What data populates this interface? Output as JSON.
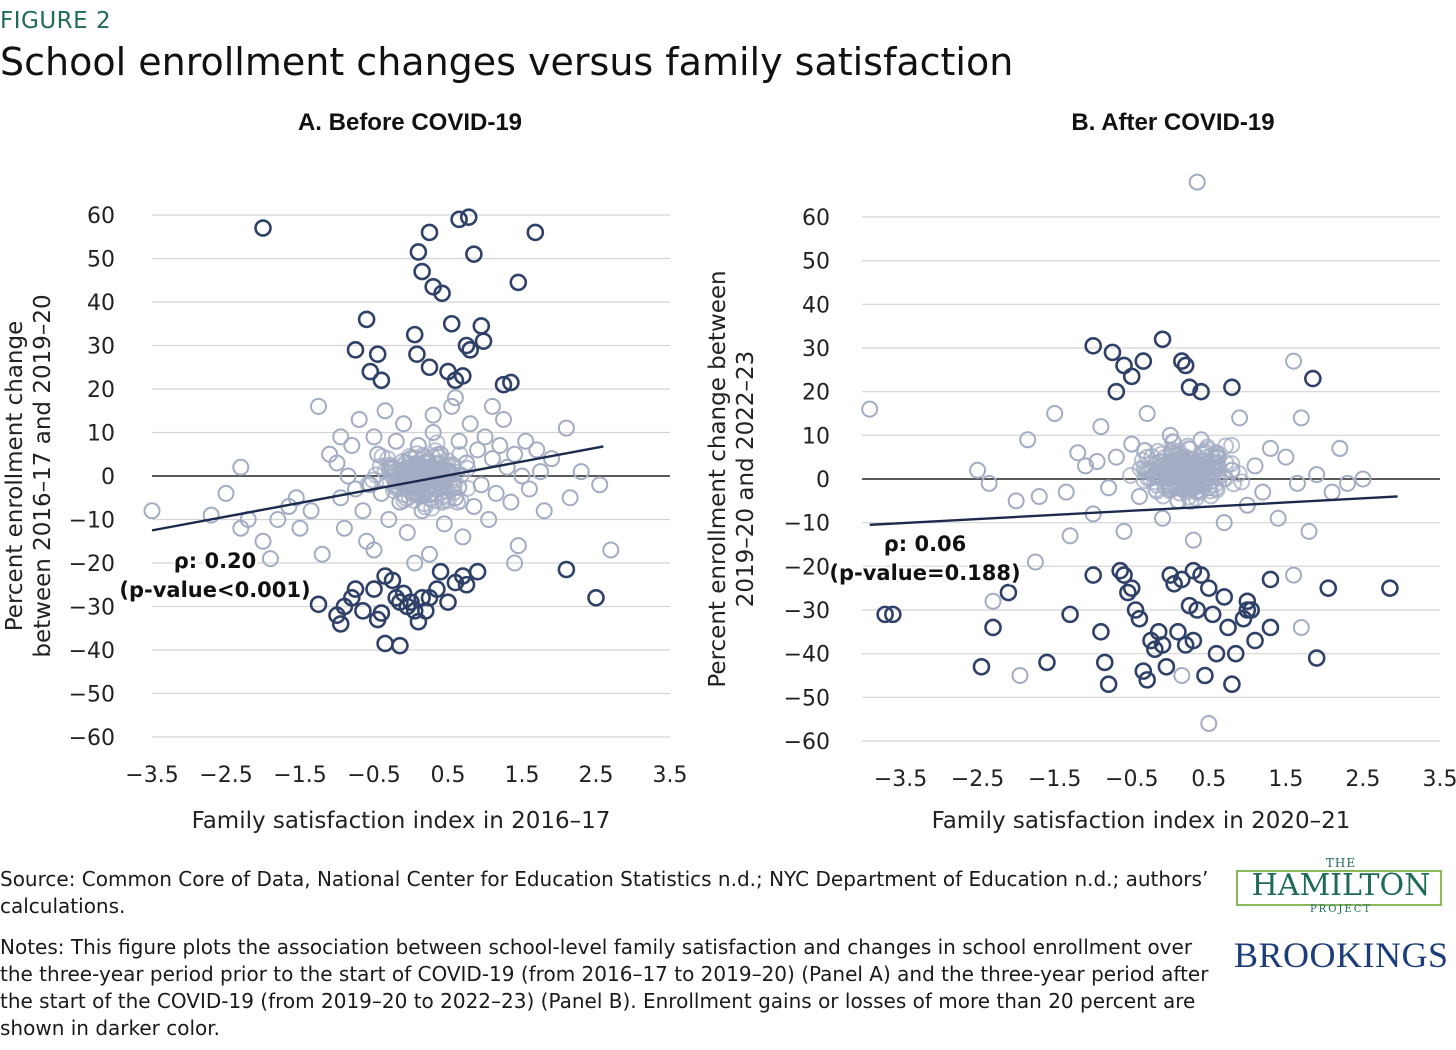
{
  "figure_label": "FIGURE 2",
  "title": "School enrollment changes versus family satisfaction",
  "source": "Source: Common Core of Data, National Center for Education Statistics n.d.; NYC Department of Education n.d.; authors’ calculations.",
  "notes": "Notes: This figure plots the association between school-level family satisfaction and changes in school enrollment over the three-year period prior to the start of COVID-19 (from 2016–17 to 2019–20) (Panel A) and the three-year period after the start of the COVID-19 (from 2019–20 to 2022–23) (Panel B). Enrollment gains or losses of more than 20 percent are shown in darker color.",
  "logos": {
    "hamilton_the": "THE",
    "hamilton_name": "HAMILTON",
    "hamilton_project": "PROJECT",
    "brookings": "BROOKINGS"
  },
  "colors": {
    "dark_marker": "#2f4168",
    "light_marker": "#a3acc3",
    "trend_line": "#1c2a4d",
    "zero_line": "#222222",
    "grid": "#d4d4d4",
    "accent": "#1f6b5a"
  },
  "chart_data": [
    {
      "type": "scatter",
      "title": "A. Before COVID-19",
      "xlabel": "Family satisfaction index in 2016–17",
      "ylabel": [
        "Percent enrollment change",
        "between 2016–17 and 2019–20"
      ],
      "xlim": [
        -3.5,
        3.5
      ],
      "ylim": [
        -60,
        60
      ],
      "xticks": [
        "-3.5",
        "-2.5",
        "-1.5",
        "-0.5",
        "0.5",
        "1.5",
        "2.5",
        "3.5"
      ],
      "yticks": [
        "60",
        "50",
        "40",
        "30",
        "20",
        "10",
        "0",
        "-10",
        "-20",
        "-30",
        "-40",
        "-50",
        "-60"
      ],
      "grid": true,
      "annotation": [
        "ρ: 0.20",
        "(p-value<0.001)"
      ],
      "trendline": {
        "x": [
          -3.5,
          2.6
        ],
        "y": [
          -12.5,
          6.8
        ]
      },
      "dark_points": [
        [
          -2.0,
          57
        ],
        [
          0.25,
          56
        ],
        [
          0.1,
          51.5
        ],
        [
          0.78,
          59.5
        ],
        [
          0.65,
          59
        ],
        [
          0.85,
          51
        ],
        [
          0.15,
          47
        ],
        [
          0.3,
          43.5
        ],
        [
          0.42,
          42
        ],
        [
          1.68,
          56
        ],
        [
          1.45,
          44.5
        ],
        [
          -0.6,
          36
        ],
        [
          0.55,
          35
        ],
        [
          0.95,
          34.5
        ],
        [
          -0.75,
          29
        ],
        [
          -0.45,
          28
        ],
        [
          0.05,
          32.5
        ],
        [
          0.75,
          30
        ],
        [
          0.8,
          29
        ],
        [
          0.98,
          31
        ],
        [
          0.08,
          28
        ],
        [
          -0.55,
          24
        ],
        [
          -0.4,
          22
        ],
        [
          0.25,
          25
        ],
        [
          0.5,
          24
        ],
        [
          0.6,
          22
        ],
        [
          0.7,
          23
        ],
        [
          1.25,
          21
        ],
        [
          1.35,
          21.5
        ],
        [
          2.5,
          -28
        ],
        [
          2.1,
          -21.5
        ],
        [
          -1.25,
          -29.5
        ],
        [
          -1.0,
          -32
        ],
        [
          -0.95,
          -34
        ],
        [
          -0.9,
          -30
        ],
        [
          -0.8,
          -28
        ],
        [
          -0.75,
          -26
        ],
        [
          -0.65,
          -31
        ],
        [
          -0.45,
          -33
        ],
        [
          -0.4,
          -31.5
        ],
        [
          -0.35,
          -23
        ],
        [
          -0.2,
          -28
        ],
        [
          -0.15,
          -29
        ],
        [
          -0.1,
          -27
        ],
        [
          -0.05,
          -30
        ],
        [
          0.0,
          -29
        ],
        [
          0.05,
          -31
        ],
        [
          0.15,
          -28
        ],
        [
          -0.35,
          -38.5
        ],
        [
          -0.15,
          -39
        ],
        [
          0.1,
          -33.5
        ],
        [
          0.25,
          -28
        ],
        [
          0.35,
          -26
        ],
        [
          0.5,
          -29
        ],
        [
          0.6,
          -24.5
        ],
        [
          0.7,
          -23
        ],
        [
          0.75,
          -25
        ],
        [
          -0.5,
          -26
        ],
        [
          -0.25,
          -24
        ],
        [
          0.2,
          -31
        ],
        [
          0.4,
          -22
        ],
        [
          0.9,
          -22
        ]
      ],
      "light_points": [
        [
          -3.5,
          -8
        ],
        [
          -2.5,
          -4
        ],
        [
          -2.3,
          2
        ],
        [
          -2.2,
          -10
        ],
        [
          -2.0,
          -15
        ],
        [
          -1.9,
          -19
        ],
        [
          -1.8,
          -10
        ],
        [
          -1.65,
          -7
        ],
        [
          -1.5,
          -12
        ],
        [
          -1.35,
          -8
        ],
        [
          -1.25,
          16
        ],
        [
          -1.2,
          -18
        ],
        [
          -1.1,
          5
        ],
        [
          -1.0,
          3
        ],
        [
          -0.95,
          -5
        ],
        [
          -0.9,
          -12
        ],
        [
          -0.85,
          0
        ],
        [
          -0.8,
          7
        ],
        [
          -0.75,
          -3
        ],
        [
          -0.7,
          13
        ],
        [
          -0.65,
          -8
        ],
        [
          -0.6,
          -15
        ],
        [
          -0.55,
          -2
        ],
        [
          -0.5,
          9
        ],
        [
          -0.45,
          5
        ],
        [
          -0.4,
          -4
        ],
        [
          -0.35,
          15
        ],
        [
          -0.3,
          -10
        ],
        [
          -0.25,
          2
        ],
        [
          -0.2,
          8
        ],
        [
          -0.15,
          -6
        ],
        [
          -0.1,
          12
        ],
        [
          -0.05,
          -13
        ],
        [
          0.0,
          4
        ],
        [
          0.05,
          -1
        ],
        [
          0.1,
          7
        ],
        [
          0.15,
          -8
        ],
        [
          0.2,
          3
        ],
        [
          0.25,
          -18
        ],
        [
          0.3,
          10
        ],
        [
          0.35,
          -3
        ],
        [
          0.4,
          5
        ],
        [
          0.45,
          -11
        ],
        [
          0.5,
          1
        ],
        [
          0.55,
          16
        ],
        [
          0.6,
          -5
        ],
        [
          0.65,
          8
        ],
        [
          0.7,
          -14
        ],
        [
          0.75,
          3
        ],
        [
          0.8,
          12
        ],
        [
          0.85,
          -7
        ],
        [
          0.9,
          6
        ],
        [
          0.95,
          -2
        ],
        [
          1.0,
          9
        ],
        [
          1.05,
          -10
        ],
        [
          1.1,
          4
        ],
        [
          1.15,
          -4
        ],
        [
          1.2,
          7
        ],
        [
          1.25,
          13
        ],
        [
          1.3,
          2
        ],
        [
          1.35,
          -6
        ],
        [
          1.4,
          5
        ],
        [
          1.45,
          -16
        ],
        [
          1.5,
          0
        ],
        [
          1.55,
          8
        ],
        [
          1.6,
          -3
        ],
        [
          1.7,
          6
        ],
        [
          1.75,
          1
        ],
        [
          1.8,
          -8
        ],
        [
          1.9,
          4
        ],
        [
          2.1,
          11
        ],
        [
          2.15,
          -5
        ],
        [
          2.3,
          1
        ],
        [
          2.55,
          -2
        ],
        [
          2.7,
          -17
        ],
        [
          1.4,
          -20
        ],
        [
          -1.55,
          -5
        ],
        [
          -0.95,
          9
        ],
        [
          -0.5,
          -17
        ],
        [
          0.05,
          -20
        ],
        [
          0.3,
          14
        ],
        [
          0.6,
          18
        ],
        [
          1.1,
          16
        ],
        [
          -2.7,
          -9
        ],
        [
          -2.3,
          -12
        ]
      ],
      "light_cloud_count": 220
    },
    {
      "type": "scatter",
      "title": "B. After COVID-19",
      "xlabel": "Family satisfaction index in 2020–21",
      "ylabel": [
        "Percent enrollment change between",
        "2019–20 and 2022–23"
      ],
      "xlim": [
        -4.0,
        3.5
      ],
      "ylim": [
        -60,
        60
      ],
      "xticks": [
        "-3.5",
        "-2.5",
        "-1.5",
        "-0.5",
        "0.5",
        "1.5",
        "2.5",
        "3.5"
      ],
      "yticks": [
        "60",
        "50",
        "40",
        "30",
        "20",
        "10",
        "0",
        "-10",
        "-20",
        "-30",
        "-40",
        "-50",
        "-60"
      ],
      "grid": true,
      "annotation": [
        "ρ: 0.06",
        "(p-value=0.188)"
      ],
      "trendline": {
        "x": [
          -3.9,
          2.95
        ],
        "y": [
          -10.5,
          -4
        ]
      },
      "dark_points": [
        [
          -0.1,
          32
        ],
        [
          -1.0,
          30.5
        ],
        [
          -0.75,
          29
        ],
        [
          -0.35,
          27
        ],
        [
          0.15,
          27
        ],
        [
          0.2,
          26
        ],
        [
          -0.6,
          26
        ],
        [
          -0.5,
          23.5
        ],
        [
          -0.7,
          20
        ],
        [
          0.25,
          21
        ],
        [
          0.4,
          20
        ],
        [
          0.8,
          21
        ],
        [
          1.85,
          23
        ],
        [
          -3.7,
          -31
        ],
        [
          -3.6,
          -31
        ],
        [
          -2.45,
          -43
        ],
        [
          -2.3,
          -34
        ],
        [
          -2.1,
          -26
        ],
        [
          -1.6,
          -42
        ],
        [
          -1.3,
          -31
        ],
        [
          -1.0,
          -22
        ],
        [
          -0.9,
          -35
        ],
        [
          -0.85,
          -42
        ],
        [
          -0.8,
          -47
        ],
        [
          -0.6,
          -22
        ],
        [
          -0.55,
          -26
        ],
        [
          -0.5,
          -25
        ],
        [
          -0.45,
          -30
        ],
        [
          -0.4,
          -32
        ],
        [
          -0.35,
          -44
        ],
        [
          -0.3,
          -46
        ],
        [
          -0.25,
          -37
        ],
        [
          -0.2,
          -39
        ],
        [
          -0.15,
          -35
        ],
        [
          -0.1,
          -38
        ],
        [
          -0.05,
          -43
        ],
        [
          0.0,
          -22
        ],
        [
          0.05,
          -24
        ],
        [
          0.1,
          -35
        ],
        [
          0.15,
          -23
        ],
        [
          0.2,
          -38
        ],
        [
          0.25,
          -29
        ],
        [
          0.3,
          -37
        ],
        [
          0.35,
          -30
        ],
        [
          0.4,
          -22
        ],
        [
          0.45,
          -45
        ],
        [
          0.5,
          -25
        ],
        [
          0.55,
          -31
        ],
        [
          0.6,
          -40
        ],
        [
          0.7,
          -27
        ],
        [
          0.75,
          -34
        ],
        [
          0.8,
          -47
        ],
        [
          0.85,
          -40
        ],
        [
          0.95,
          -32
        ],
        [
          1.0,
          -28
        ],
        [
          1.05,
          -30
        ],
        [
          1.1,
          -37
        ],
        [
          1.3,
          -23
        ],
        [
          1.3,
          -34
        ],
        [
          1.9,
          -41
        ],
        [
          2.05,
          -25
        ],
        [
          2.85,
          -25
        ],
        [
          -0.65,
          -21
        ],
        [
          0.3,
          -21
        ],
        [
          1.0,
          -30
        ]
      ],
      "light_points": [
        [
          -3.9,
          16
        ],
        [
          0.35,
          68
        ],
        [
          -2.5,
          2
        ],
        [
          -2.35,
          -1
        ],
        [
          -2.3,
          -28
        ],
        [
          -2.0,
          -5
        ],
        [
          -1.85,
          9
        ],
        [
          -1.75,
          -19
        ],
        [
          -1.7,
          -4
        ],
        [
          -1.5,
          15
        ],
        [
          -1.3,
          -13
        ],
        [
          -1.2,
          6
        ],
        [
          -1.1,
          3
        ],
        [
          -1.0,
          -8
        ],
        [
          -0.9,
          12
        ],
        [
          -0.8,
          -2
        ],
        [
          -0.7,
          5
        ],
        [
          -0.6,
          -12
        ],
        [
          -0.5,
          8
        ],
        [
          -0.4,
          -4
        ],
        [
          -0.3,
          15
        ],
        [
          -0.2,
          1
        ],
        [
          -0.1,
          -9
        ],
        [
          0.0,
          10
        ],
        [
          0.1,
          -5
        ],
        [
          0.2,
          4
        ],
        [
          0.3,
          -14
        ],
        [
          0.4,
          9
        ],
        [
          0.5,
          -2
        ],
        [
          0.6,
          6
        ],
        [
          0.7,
          -10
        ],
        [
          0.8,
          2
        ],
        [
          0.9,
          14
        ],
        [
          1.0,
          -6
        ],
        [
          1.1,
          3
        ],
        [
          1.2,
          -3
        ],
        [
          1.3,
          7
        ],
        [
          1.4,
          -9
        ],
        [
          1.5,
          5
        ],
        [
          1.6,
          27
        ],
        [
          1.65,
          -1
        ],
        [
          1.8,
          -12
        ],
        [
          1.9,
          1
        ],
        [
          2.1,
          -3
        ],
        [
          2.2,
          7
        ],
        [
          2.3,
          -1
        ],
        [
          2.5,
          0
        ],
        [
          1.7,
          -34
        ],
        [
          1.6,
          -22
        ],
        [
          0.5,
          -56
        ],
        [
          -1.95,
          -45
        ],
        [
          -1.35,
          -3
        ],
        [
          -0.95,
          4
        ],
        [
          0.15,
          -45
        ],
        [
          1.7,
          14
        ]
      ],
      "light_cloud_count": 240
    }
  ]
}
